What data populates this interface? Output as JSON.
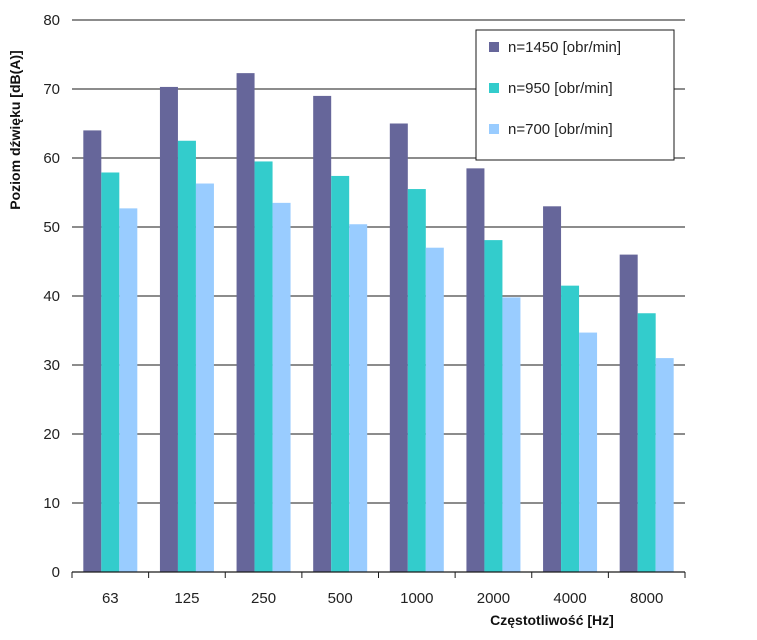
{
  "chart_data": {
    "type": "bar",
    "title": "",
    "xlabel": "Częstotliwość [Hz]",
    "ylabel": "Poziom dźwięku [dB(A)]",
    "ylim": [
      0,
      80
    ],
    "yticks": [
      "0",
      "10",
      "20",
      "30",
      "40",
      "50",
      "60",
      "70",
      "80"
    ],
    "grid": true,
    "legend_position": "top-right",
    "categories": [
      "63",
      "125",
      "250",
      "500",
      "1000",
      "2000",
      "4000",
      "8000"
    ],
    "series": [
      {
        "name": "n=1450 [obr/min]",
        "color": "#66669a",
        "values": [
          64,
          70.3,
          72.3,
          69,
          65,
          58.5,
          53,
          46
        ]
      },
      {
        "name": "n=950 [obr/min]",
        "color": "#33cccc",
        "values": [
          57.9,
          62.5,
          59.5,
          57.4,
          55.5,
          48.1,
          41.5,
          37.5
        ]
      },
      {
        "name": "n=700 [obr/min]",
        "color": "#99ccff",
        "values": [
          52.7,
          56.3,
          53.5,
          50.4,
          47,
          39.8,
          34.7,
          31
        ]
      }
    ]
  }
}
